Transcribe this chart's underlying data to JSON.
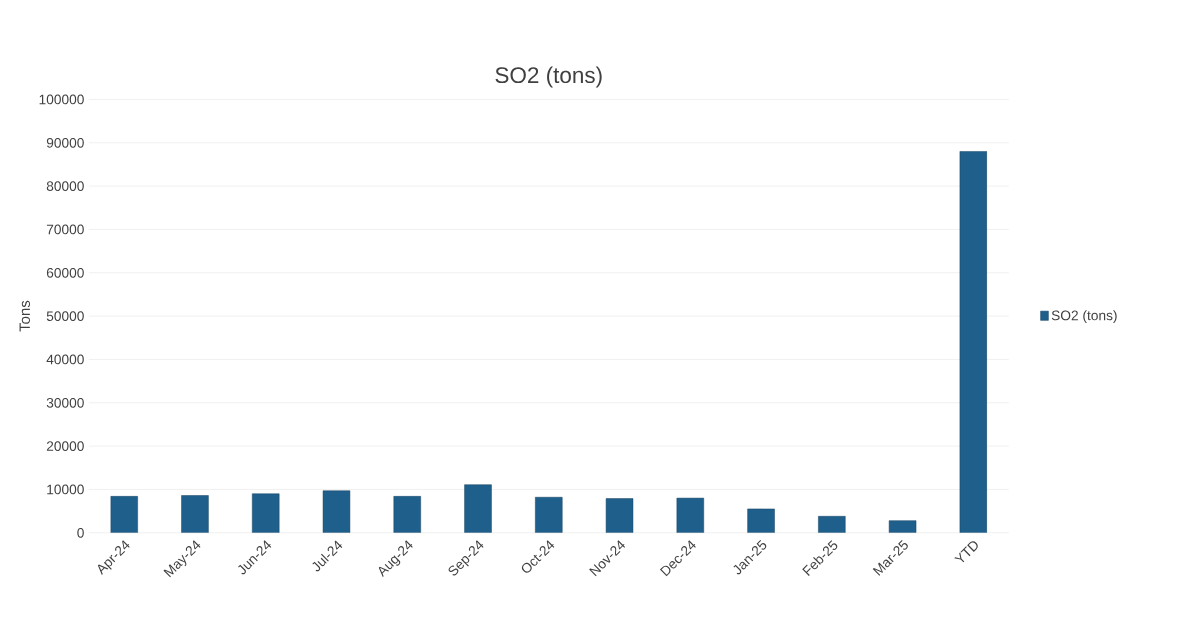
{
  "chart_data": {
    "type": "bar",
    "title": "SO2 (tons)",
    "ylabel": "Tons",
    "categories": [
      "Apr-24",
      "May-24",
      "Jun-24",
      "Jul-24",
      "Aug-24",
      "Sep-24",
      "Oct-24",
      "Nov-24",
      "Dec-24",
      "Jan-25",
      "Feb-25",
      "Mar-25",
      "YTD"
    ],
    "series": [
      {
        "name": "SO2 (tons)",
        "color": "#1f5f8b",
        "values": [
          8400,
          8600,
          9000,
          9700,
          8400,
          11100,
          8200,
          7900,
          8000,
          5500,
          3800,
          2800,
          88000
        ]
      }
    ],
    "ylim": [
      0,
      100000
    ],
    "yticks": [
      0,
      10000,
      20000,
      30000,
      40000,
      50000,
      60000,
      70000,
      80000,
      90000,
      100000
    ],
    "grid": "y",
    "legend": "right"
  }
}
